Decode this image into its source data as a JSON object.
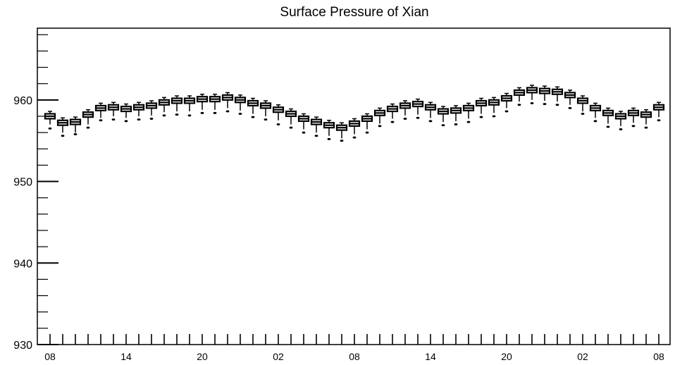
{
  "chart_data": {
    "type": "box",
    "title": "Surface Pressure of Xian",
    "xlabel": "",
    "ylabel": "",
    "ylim": [
      930,
      968.8
    ],
    "y_ticks": [
      930,
      940,
      950,
      960
    ],
    "x_tick_labels": [
      "08",
      "14",
      "20",
      "02",
      "08",
      "14",
      "20",
      "02",
      "08"
    ],
    "x_tick_label_positions": [
      0,
      6,
      12,
      18,
      24,
      30,
      36,
      42,
      48
    ],
    "grid": false,
    "legend": "none",
    "x": [
      0,
      1,
      2,
      3,
      4,
      5,
      6,
      7,
      8,
      9,
      10,
      11,
      12,
      13,
      14,
      15,
      16,
      17,
      18,
      19,
      20,
      21,
      22,
      23,
      24,
      25,
      26,
      27,
      28,
      29,
      30,
      31,
      32,
      33,
      34,
      35,
      36,
      37,
      38,
      39,
      40,
      41,
      42,
      43,
      44,
      45,
      46,
      47,
      48
    ],
    "median": [
      958.0,
      957.2,
      957.3,
      958.2,
      959.0,
      959.1,
      958.9,
      959.1,
      959.3,
      959.7,
      959.9,
      959.9,
      960.1,
      960.1,
      960.3,
      960.0,
      959.6,
      959.3,
      958.8,
      958.3,
      957.7,
      957.3,
      956.9,
      956.6,
      957.1,
      957.7,
      958.4,
      958.9,
      959.3,
      959.5,
      959.1,
      958.6,
      958.7,
      959.0,
      959.6,
      959.7,
      960.2,
      960.9,
      961.2,
      961.1,
      961.0,
      960.6,
      959.9,
      959.0,
      958.4,
      958.0,
      958.4,
      958.2,
      959.1
    ],
    "q1": [
      957.7,
      956.9,
      957.0,
      957.9,
      958.7,
      958.8,
      958.6,
      958.8,
      959.0,
      959.4,
      959.6,
      959.6,
      959.8,
      959.8,
      960.0,
      959.7,
      959.3,
      959.0,
      958.5,
      958.0,
      957.4,
      957.0,
      956.6,
      956.3,
      956.8,
      957.4,
      958.1,
      958.6,
      959.0,
      959.2,
      958.8,
      958.3,
      958.4,
      958.7,
      959.3,
      959.4,
      959.9,
      960.6,
      960.9,
      960.8,
      960.7,
      960.3,
      959.6,
      958.7,
      958.1,
      957.7,
      958.1,
      957.9,
      958.8
    ],
    "q3": [
      958.3,
      957.5,
      957.6,
      958.5,
      959.3,
      959.4,
      959.2,
      959.4,
      959.6,
      960.0,
      960.2,
      960.2,
      960.4,
      960.4,
      960.6,
      960.3,
      959.9,
      959.6,
      959.1,
      958.6,
      958.0,
      957.6,
      957.2,
      956.9,
      957.4,
      958.0,
      958.7,
      959.2,
      959.6,
      959.8,
      959.4,
      958.9,
      959.0,
      959.3,
      959.9,
      960.0,
      960.5,
      961.2,
      961.5,
      961.4,
      961.3,
      960.9,
      960.2,
      959.3,
      958.7,
      958.3,
      958.7,
      958.5,
      959.4
    ],
    "whisker_low": [
      957.0,
      956.0,
      956.0,
      957.0,
      957.8,
      958.0,
      957.8,
      958.0,
      958.1,
      958.5,
      958.6,
      958.6,
      958.8,
      958.8,
      959.0,
      958.7,
      958.3,
      958.0,
      957.5,
      957.0,
      956.4,
      956.0,
      955.6,
      955.3,
      955.8,
      956.4,
      957.1,
      957.7,
      958.1,
      958.2,
      957.8,
      957.3,
      957.4,
      957.7,
      958.3,
      958.4,
      959.0,
      959.8,
      960.0,
      959.9,
      959.8,
      959.4,
      958.6,
      957.8,
      957.1,
      956.8,
      957.2,
      957.0,
      957.9
    ],
    "whisker_high": [
      958.6,
      957.8,
      957.9,
      958.8,
      959.6,
      959.7,
      959.5,
      959.7,
      959.9,
      960.3,
      960.5,
      960.5,
      960.7,
      960.7,
      960.9,
      960.6,
      960.2,
      959.9,
      959.4,
      958.9,
      958.3,
      957.9,
      957.5,
      957.2,
      957.7,
      958.3,
      959.0,
      959.5,
      959.9,
      960.1,
      959.7,
      959.2,
      959.3,
      959.6,
      960.2,
      960.3,
      960.8,
      961.5,
      961.8,
      961.7,
      961.6,
      961.2,
      960.5,
      959.6,
      959.0,
      958.6,
      959.0,
      958.8,
      959.7
    ],
    "outliers": [
      [
        956.5
      ],
      [
        955.6
      ],
      [
        955.8
      ],
      [
        956.6
      ],
      [
        957.5
      ],
      [
        957.6
      ],
      [
        957.4
      ],
      [
        957.6
      ],
      [
        957.7
      ],
      [
        958.1
      ],
      [
        958.2
      ],
      [
        958.1
      ],
      [
        958.4
      ],
      [
        958.4
      ],
      [
        958.6
      ],
      [
        958.3
      ],
      [
        957.9
      ],
      [
        957.6
      ],
      [
        957.0
      ],
      [
        956.6
      ],
      [
        956.0
      ],
      [
        955.6
      ],
      [
        955.2
      ],
      [
        955.0
      ],
      [
        955.4
      ],
      [
        956.0
      ],
      [
        956.8
      ],
      [
        957.3
      ],
      [
        957.7
      ],
      [
        957.8
      ],
      [
        957.4
      ],
      [
        956.9
      ],
      [
        957.0
      ],
      [
        957.3
      ],
      [
        957.9
      ],
      [
        958.0
      ],
      [
        958.6
      ],
      [
        959.4
      ],
      [
        959.6
      ],
      [
        959.5
      ],
      [
        959.4
      ],
      [
        959.0
      ],
      [
        958.3
      ],
      [
        957.4
      ],
      [
        956.7
      ],
      [
        956.4
      ],
      [
        956.8
      ],
      [
        956.6
      ],
      [
        957.5
      ]
    ]
  }
}
